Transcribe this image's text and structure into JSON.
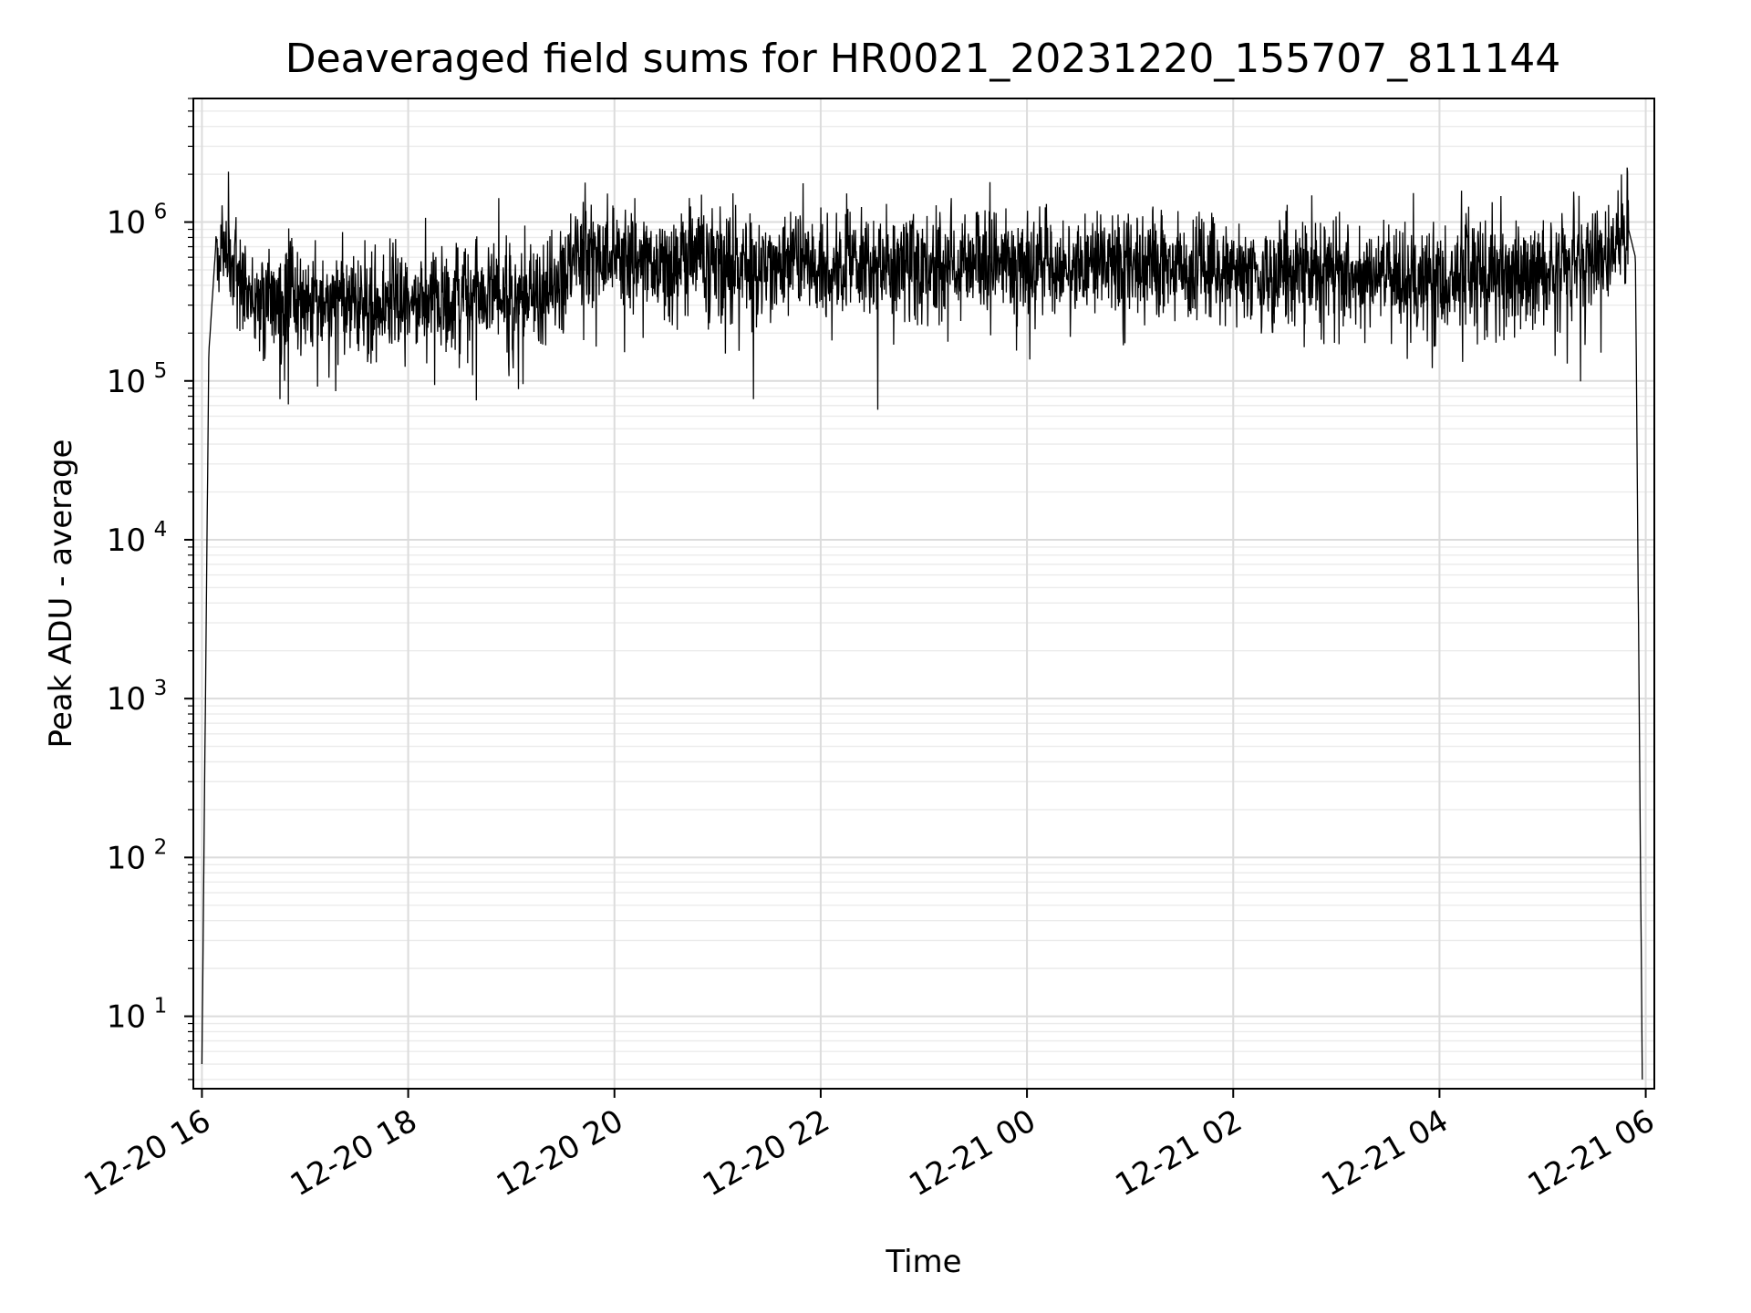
{
  "chart_data": {
    "type": "line",
    "title": "Deaveraged field sums for HR0021_20231220_155707_811144",
    "xlabel": "Time",
    "ylabel": "Peak ADU - average",
    "yscale": "log",
    "ylim": [
      3.5,
      6000000
    ],
    "xlim": [
      "2023-12-20 15:55",
      "2023-12-21 06:05"
    ],
    "grid": true,
    "line_color": "#000000",
    "x_ticks": [
      "12-20 16",
      "12-20 18",
      "12-20 20",
      "12-20 22",
      "12-21 00",
      "12-21 02",
      "12-21 04",
      "12-21 06"
    ],
    "y_ticks": [
      {
        "base": "10",
        "exp": "1",
        "value": 10
      },
      {
        "base": "10",
        "exp": "2",
        "value": 100
      },
      {
        "base": "10",
        "exp": "3",
        "value": 1000
      },
      {
        "base": "10",
        "exp": "4",
        "value": 10000
      },
      {
        "base": "10",
        "exp": "5",
        "value": 100000
      },
      {
        "base": "10",
        "exp": "6",
        "value": 1000000
      }
    ],
    "series": [
      {
        "x": [
          "2023-12-20 16:00",
          "2023-12-20 16:04",
          "2023-12-20 16:08",
          "2023-12-20 16:12",
          "2023-12-20 16:20",
          "2023-12-20 16:30",
          "2023-12-20 17:00",
          "2023-12-20 17:30",
          "2023-12-20 18:00",
          "2023-12-20 18:30",
          "2023-12-20 19:00",
          "2023-12-20 19:30",
          "2023-12-20 19:40",
          "2023-12-20 20:00",
          "2023-12-20 21:00",
          "2023-12-20 22:00",
          "2023-12-20 23:00",
          "2023-12-21 00:00",
          "2023-12-21 01:00",
          "2023-12-21 02:00",
          "2023-12-21 03:00",
          "2023-12-21 04:00",
          "2023-12-21 05:00",
          "2023-12-21 05:40",
          "2023-12-21 05:50",
          "2023-12-21 05:54",
          "2023-12-21 05:58"
        ],
        "values": [
          5,
          150000,
          700000,
          800000,
          500000,
          300000,
          320000,
          300000,
          320000,
          330000,
          350000,
          380000,
          600000,
          620000,
          560000,
          540000,
          560000,
          520000,
          540000,
          480000,
          460000,
          450000,
          480000,
          600000,
          900000,
          600000,
          4
        ],
        "noise": {
          "min": 55000,
          "max": 3300000
        }
      }
    ]
  }
}
